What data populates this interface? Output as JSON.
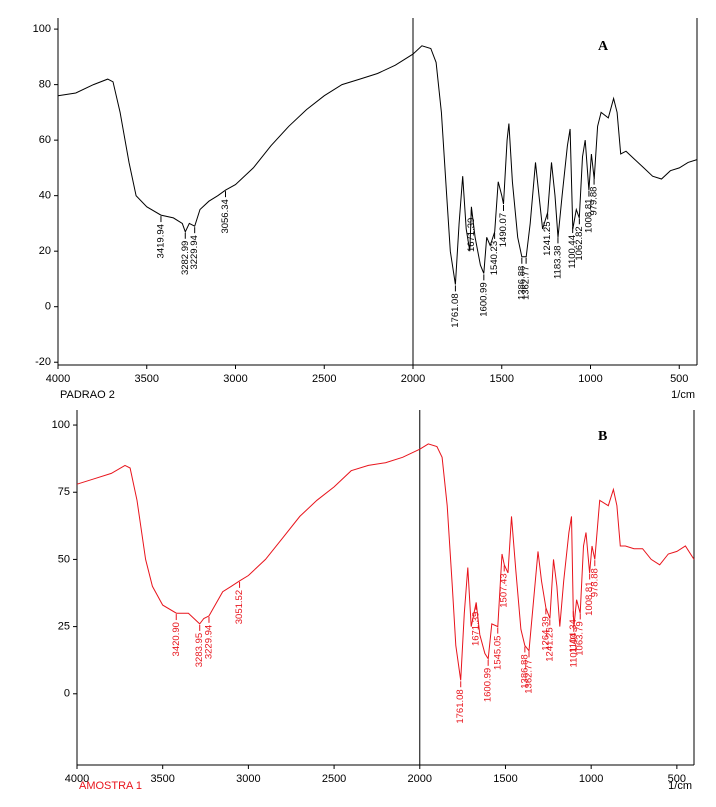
{
  "chart_data": [
    {
      "type": "line",
      "panel": "A",
      "label": "PADRAO 2",
      "x_unit": "1/cm",
      "color": "#000000",
      "xlim": [
        4000,
        400
      ],
      "ylim": [
        -21,
        104
      ],
      "xticks": [
        4000,
        3500,
        3000,
        2500,
        2000,
        1500,
        1000,
        500
      ],
      "yticks": [
        100,
        80,
        60,
        40,
        20,
        0,
        -20
      ],
      "vline": 2000,
      "x": [
        4000,
        3900,
        3800,
        3720,
        3690,
        3650,
        3600,
        3560,
        3500,
        3420,
        3350,
        3300,
        3283,
        3260,
        3230,
        3200,
        3150,
        3100,
        3056,
        3000,
        2900,
        2800,
        2700,
        2600,
        2500,
        2400,
        2300,
        2200,
        2100,
        2000,
        1950,
        1900,
        1870,
        1840,
        1810,
        1790,
        1761,
        1740,
        1720,
        1700,
        1680,
        1671,
        1650,
        1620,
        1601,
        1585,
        1565,
        1540,
        1520,
        1500,
        1490,
        1470,
        1460,
        1440,
        1410,
        1387,
        1362,
        1340,
        1310,
        1290,
        1270,
        1241,
        1220,
        1200,
        1183,
        1160,
        1130,
        1115,
        1100,
        1080,
        1063,
        1045,
        1030,
        1009,
        995,
        979,
        960,
        940,
        900,
        870,
        850,
        830,
        800,
        750,
        700,
        650,
        600,
        550,
        500,
        450,
        400
      ],
      "values": [
        76,
        77,
        80,
        82,
        81,
        70,
        52,
        40,
        36,
        33,
        32,
        30,
        27,
        30,
        29,
        35,
        38,
        40,
        42,
        44,
        50,
        58,
        65,
        71,
        76,
        80,
        82,
        84,
        87,
        91,
        94,
        93,
        88,
        70,
        40,
        20,
        8,
        30,
        47,
        28,
        20,
        36,
        25,
        15,
        12,
        25,
        22,
        27,
        45,
        40,
        37,
        60,
        66,
        45,
        25,
        18,
        18,
        30,
        52,
        40,
        28,
        34,
        52,
        40,
        25,
        40,
        58,
        64,
        28,
        35,
        32,
        54,
        60,
        42,
        55,
        46,
        65,
        70,
        68,
        75,
        70,
        55,
        56,
        53,
        50,
        47,
        46,
        49,
        50,
        52,
        53
      ],
      "peaks": [
        3419.94,
        3282.99,
        3229.94,
        3056.34,
        1761.08,
        1671.39,
        1600.99,
        1540.23,
        1490.07,
        1386.88,
        1362.77,
        1241.25,
        1183.38,
        1100.44,
        1062.82,
        1008.81,
        979.88
      ]
    },
    {
      "type": "line",
      "panel": "B",
      "label": "AMOSTRA 1",
      "x_unit": "1/cm",
      "color": "#e8141c",
      "xlim": [
        4000,
        400
      ],
      "ylim": [
        -26.5,
        105.6
      ],
      "xticks": [
        4000,
        3500,
        3000,
        2500,
        2000,
        1500,
        1000,
        500
      ],
      "yticks": [
        100,
        75,
        50,
        25,
        0
      ],
      "vline": 2000,
      "x": [
        4000,
        3900,
        3800,
        3720,
        3690,
        3650,
        3600,
        3560,
        3500,
        3420,
        3350,
        3284,
        3260,
        3230,
        3150,
        3100,
        3052,
        3000,
        2900,
        2800,
        2700,
        2600,
        2500,
        2400,
        2300,
        2200,
        2100,
        2000,
        1950,
        1900,
        1870,
        1840,
        1810,
        1790,
        1761,
        1740,
        1720,
        1700,
        1671,
        1650,
        1620,
        1601,
        1580,
        1545,
        1520,
        1507,
        1485,
        1465,
        1440,
        1410,
        1387,
        1363,
        1340,
        1310,
        1290,
        1264,
        1241,
        1220,
        1200,
        1183,
        1160,
        1130,
        1115,
        1104,
        1101,
        1085,
        1064,
        1045,
        1030,
        1009,
        995,
        979,
        950,
        900,
        870,
        850,
        830,
        800,
        750,
        700,
        650,
        600,
        550,
        500,
        450,
        400
      ],
      "values": [
        78,
        80,
        82,
        85,
        84,
        72,
        50,
        40,
        33,
        30,
        30,
        26,
        28,
        29,
        38,
        40,
        42,
        44,
        50,
        58,
        66,
        72,
        77,
        83,
        85,
        86,
        88,
        91,
        93,
        92,
        88,
        70,
        40,
        18,
        5,
        30,
        47,
        25,
        34,
        22,
        15,
        13,
        26,
        25,
        52,
        48,
        45,
        66,
        46,
        24,
        18,
        16,
        32,
        53,
        42,
        32,
        28,
        50,
        40,
        25,
        42,
        60,
        66,
        30,
        25,
        35,
        30,
        55,
        60,
        45,
        55,
        50,
        72,
        70,
        76,
        70,
        55,
        55,
        54,
        54,
        50,
        48,
        52,
        53,
        55,
        50
      ],
      "peaks": [
        {
          "value": 3420.9,
          "label": "3420.90"
        },
        3283.95,
        3229.94,
        3051.52,
        1761.08,
        1671.39,
        1600.99,
        1545.05,
        1507.43,
        1386.88,
        1362.77,
        1264.39,
        1241.25,
        1104.34,
        {
          "value": 1101.4,
          "label": "1101.40"
        },
        1063.79,
        1008.81,
        978.88
      ]
    }
  ]
}
